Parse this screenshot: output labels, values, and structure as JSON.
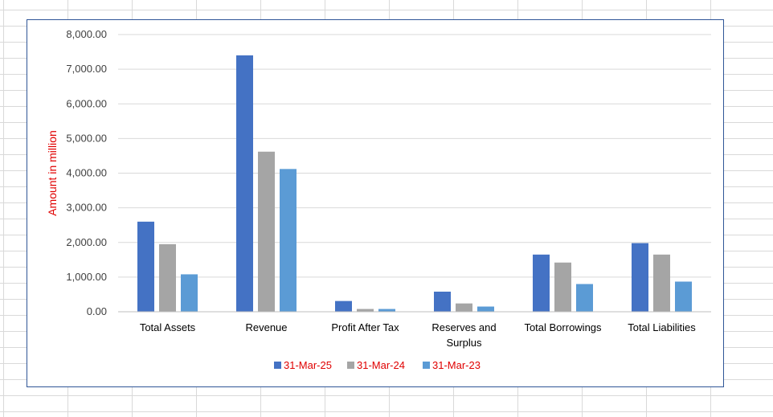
{
  "chart_data": {
    "type": "bar",
    "ylabel": "Amount in million",
    "ylabel_color": "#e00000",
    "ylim": [
      0,
      8000
    ],
    "y_ticks": [
      0,
      1000,
      2000,
      3000,
      4000,
      5000,
      6000,
      7000,
      8000
    ],
    "y_tick_labels": [
      "0.00",
      "1,000.00",
      "2,000.00",
      "3,000.00",
      "4,000.00",
      "5,000.00",
      "6,000.00",
      "7,000.00",
      "8,000.00"
    ],
    "categories": [
      [
        "Total Assets"
      ],
      [
        "Revenue"
      ],
      [
        "Profit After Tax"
      ],
      [
        "Reserves and",
        "Surplus"
      ],
      [
        "Total Borrowings"
      ],
      [
        "Total Liabilities"
      ]
    ],
    "series": [
      {
        "name": "31-Mar-25",
        "color": "#4472c4",
        "values": [
          2600,
          7400,
          310,
          580,
          1650,
          1980
        ]
      },
      {
        "name": "31-Mar-24",
        "color": "#a5a5a5",
        "values": [
          1950,
          4620,
          80,
          240,
          1420,
          1650
        ]
      },
      {
        "name": "31-Mar-23",
        "color": "#5b9bd5",
        "values": [
          1080,
          4120,
          80,
          150,
          800,
          870
        ]
      }
    ],
    "legend_position": "bottom",
    "legend_text_color": "#e00000",
    "grid": true
  }
}
